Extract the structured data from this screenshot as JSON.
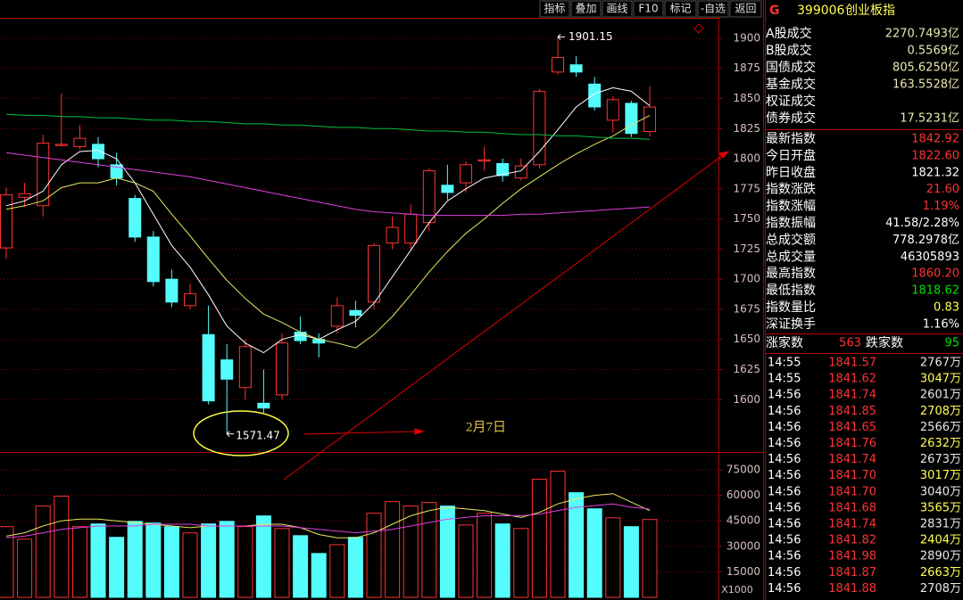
{
  "toolbar": [
    "指标",
    "叠加",
    "画线",
    "F10",
    "标记",
    "-自选",
    "返回"
  ],
  "quote": {
    "flag": "G",
    "code": "399006",
    "name": "创业板指",
    "turnover": [
      {
        "label": "A股成交",
        "value": "2270.7493亿"
      },
      {
        "label": "B股成交",
        "value": "0.5569亿"
      },
      {
        "label": "国债成交",
        "value": "805.6250亿"
      },
      {
        "label": "基金成交",
        "value": "163.5528亿"
      },
      {
        "label": "权证成交"
      },
      {
        "label": "债券成交",
        "value": "17.5231亿"
      }
    ],
    "index": [
      {
        "label": "最新指数",
        "value": "1842.92",
        "color": "#ff3232"
      },
      {
        "label": "今日开盘",
        "value": "1822.60",
        "color": "#ff3232"
      },
      {
        "label": "昨日收盘",
        "value": "1821.32",
        "color": "#ffffff"
      },
      {
        "label": "指数涨跌",
        "value": "21.60",
        "color": "#ff3232"
      },
      {
        "label": "指数涨幅",
        "value": "1.19%",
        "color": "#ff3232"
      },
      {
        "label": "指数振幅",
        "value": "41.58/2.28%",
        "color": "#ffffff"
      },
      {
        "label": "总成交额",
        "value": "778.2978亿",
        "color": "#ffffff"
      },
      {
        "label": "总成交量",
        "value": "46305893",
        "color": "#ffffff"
      },
      {
        "label": "最高指数",
        "value": "1860.20",
        "color": "#ff3232"
      },
      {
        "label": "最低指数",
        "value": "1818.62",
        "color": "#00e000"
      },
      {
        "label": "指数量比",
        "value": "0.83",
        "color": "#ffff54"
      },
      {
        "label": "深证换手",
        "value": "1.16%",
        "color": "#ffffff"
      }
    ],
    "breadth": {
      "up_label": "涨家数",
      "up": 563,
      "down_label": "跌家数",
      "down": 95
    },
    "ticks": [
      [
        "14:55",
        "1841.57",
        "2767万"
      ],
      [
        "14:55",
        "1841.62",
        "3047万"
      ],
      [
        "14:56",
        "1841.74",
        "2601万"
      ],
      [
        "14:56",
        "1841.85",
        "2708万"
      ],
      [
        "14:56",
        "1841.65",
        "2566万"
      ],
      [
        "14:56",
        "1841.76",
        "2632万"
      ],
      [
        "14:56",
        "1841.74",
        "2673万"
      ],
      [
        "14:56",
        "1841.70",
        "3017万"
      ],
      [
        "14:56",
        "1841.70",
        "3040万"
      ],
      [
        "14:56",
        "1841.68",
        "3565万"
      ],
      [
        "14:56",
        "1841.74",
        "2831万"
      ],
      [
        "14:56",
        "1841.82",
        "2404万"
      ],
      [
        "14:56",
        "1841.98",
        "2890万"
      ],
      [
        "14:56",
        "1841.87",
        "2663万"
      ],
      [
        "14:56",
        "1841.88",
        "2708万"
      ]
    ]
  },
  "chart_data": [
    {
      "type": "candlestick",
      "up_color": "#ff3232",
      "down_color": "#54fcfc",
      "ylim": [
        1558,
        1917
      ],
      "yticks": [
        1600,
        1625,
        1650,
        1675,
        1700,
        1725,
        1750,
        1775,
        1800,
        1825,
        1850,
        1875,
        1900
      ],
      "grid": true,
      "open": [
        1726,
        1768,
        1761,
        1811,
        1810,
        1812,
        1795,
        1767,
        1735,
        1700,
        1678,
        1654,
        1633,
        1610,
        1597,
        1604,
        1656,
        1650,
        1661,
        1674,
        1681,
        1730,
        1730,
        1747,
        1778,
        1780,
        1798,
        1796,
        1784,
        1795,
        1872,
        1878,
        1862,
        1832,
        1846,
        1822.6
      ],
      "high": [
        1776,
        1780,
        1820,
        1854,
        1828,
        1818,
        1805,
        1770,
        1740,
        1708,
        1696,
        1678,
        1646,
        1650,
        1625,
        1655,
        1669,
        1655,
        1685,
        1682,
        1730,
        1752,
        1762,
        1792,
        1795,
        1798,
        1810,
        1800,
        1800,
        1858,
        1901.15,
        1885,
        1868,
        1852,
        1848,
        1860.2
      ],
      "low": [
        1717,
        1760,
        1752,
        1810,
        1808,
        1793,
        1778,
        1731,
        1694,
        1677,
        1675,
        1596,
        1571.47,
        1600,
        1588,
        1600,
        1646,
        1635,
        1655,
        1660,
        1675,
        1725,
        1725,
        1740,
        1766,
        1772,
        1790,
        1781,
        1782,
        1792,
        1870,
        1868,
        1840,
        1822,
        1818,
        1818.62
      ],
      "close": [
        1770,
        1771,
        1813,
        1812,
        1817,
        1800,
        1784,
        1735,
        1698,
        1681,
        1688,
        1599,
        1617,
        1644,
        1593,
        1647,
        1649,
        1647,
        1678,
        1670,
        1728,
        1743,
        1754,
        1790,
        1772,
        1795,
        1799,
        1786,
        1794,
        1856,
        1884,
        1872,
        1843,
        1849,
        1821,
        1842.92
      ],
      "series": [
        {
          "color": "#ffffff",
          "values": [
            1761,
            1765,
            1773,
            1795,
            1806,
            1807,
            1800,
            1780,
            1754,
            1728,
            1710,
            1687,
            1661,
            1647,
            1639,
            1650,
            1654,
            1650,
            1658,
            1665,
            1680,
            1702,
            1724,
            1747,
            1765,
            1775,
            1784,
            1787,
            1790,
            1806,
            1824,
            1843,
            1854,
            1859,
            1856,
            1844
          ]
        },
        {
          "color": "#e8e860",
          "values": [
            1758,
            1761,
            1765,
            1776,
            1780,
            1780,
            1784,
            1780,
            1773,
            1754,
            1736,
            1717,
            1699,
            1684,
            1671,
            1664,
            1656,
            1650,
            1647,
            1643,
            1654,
            1669,
            1687,
            1706,
            1723,
            1738,
            1750,
            1763,
            1775,
            1785,
            1795,
            1804,
            1812,
            1819,
            1828,
            1836
          ]
        },
        {
          "color": "#00c040",
          "values": [
            1837,
            1836,
            1836,
            1835,
            1835,
            1834,
            1834,
            1833,
            1832,
            1832,
            1831,
            1831,
            1830,
            1829,
            1829,
            1828,
            1828,
            1827,
            1826,
            1826,
            1825,
            1825,
            1824,
            1823,
            1823,
            1822,
            1822,
            1821,
            1820,
            1820,
            1819,
            1819,
            1818,
            1817,
            1817,
            1816
          ]
        },
        {
          "color": "#e040e0",
          "values": [
            1805,
            1803,
            1801,
            1799,
            1797,
            1795,
            1793,
            1791,
            1789,
            1787,
            1785,
            1782,
            1779,
            1776,
            1773,
            1770,
            1767,
            1764,
            1761,
            1758,
            1756,
            1755,
            1754,
            1753,
            1753,
            1753,
            1753,
            1753,
            1754,
            1754,
            1755,
            1756,
            1757,
            1758,
            1759,
            1760
          ]
        }
      ],
      "annotation": "2月7日"
    },
    {
      "type": "bar",
      "ylim": [
        0,
        85000
      ],
      "yticks": [
        15000,
        30000,
        45000,
        60000,
        75000
      ],
      "unit_label": "X1000",
      "values": [
        41600,
        34200,
        53700,
        59500,
        41600,
        43200,
        35300,
        44700,
        43700,
        41600,
        37900,
        43200,
        44700,
        41600,
        47900,
        40500,
        36300,
        25800,
        31000,
        35300,
        49500,
        56300,
        53700,
        55800,
        53700,
        42600,
        49500,
        43200,
        40500,
        69500,
        74200,
        61600,
        52100,
        46800,
        41600,
        45800
      ],
      "series": [
        {
          "color": "#e8e860",
          "values": [
            36000,
            38000,
            42000,
            45000,
            46000,
            46000,
            45000,
            44000,
            43000,
            42000,
            41000,
            42000,
            42000,
            42000,
            43000,
            43000,
            41000,
            37000,
            35000,
            35000,
            38000,
            43000,
            48000,
            51000,
            53000,
            52000,
            51000,
            49000,
            47000,
            50000,
            55000,
            58000,
            60000,
            61000,
            56000,
            51000
          ]
        },
        {
          "color": "#e040e0",
          "values": [
            35000,
            36000,
            38000,
            40000,
            41000,
            42000,
            42000,
            42000,
            43000,
            43000,
            43000,
            42000,
            42000,
            42000,
            42000,
            42000,
            41000,
            40000,
            39000,
            38000,
            39000,
            40000,
            42000,
            44000,
            46000,
            47000,
            48000,
            48000,
            48000,
            49000,
            51000,
            53000,
            54000,
            55000,
            53000,
            52000
          ]
        }
      ]
    }
  ]
}
